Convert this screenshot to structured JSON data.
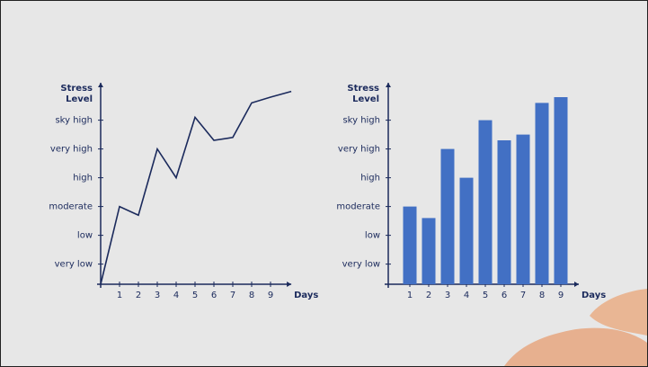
{
  "chart_data": [
    {
      "type": "line",
      "y_label": "Stress Level",
      "x_label": "Days",
      "x": [
        0,
        1,
        2,
        3,
        4,
        5,
        6,
        7,
        8,
        9,
        10.1
      ],
      "values": [
        0.3,
        3.0,
        2.7,
        5.0,
        4.0,
        6.1,
        5.3,
        5.4,
        6.6,
        6.8,
        7.0
      ],
      "color": "#1b2a5c",
      "xlim": [
        0,
        10.1
      ],
      "xticks": [
        1,
        2,
        3,
        4,
        5,
        6,
        7,
        8,
        9
      ],
      "ylim": [
        0.3,
        7.3
      ],
      "yticks": [
        {
          "value": 1,
          "label": "very low"
        },
        {
          "value": 2,
          "label": "low"
        },
        {
          "value": 3,
          "label": "moderate"
        },
        {
          "value": 4,
          "label": "high"
        },
        {
          "value": 5,
          "label": "very high"
        },
        {
          "value": 6,
          "label": "sky high"
        }
      ]
    },
    {
      "type": "bar",
      "y_label": "Stress Level",
      "x_label": "Days",
      "categories": [
        "1",
        "2",
        "3",
        "4",
        "5",
        "6",
        "7",
        "8",
        "9"
      ],
      "values": [
        3.0,
        2.6,
        5.0,
        4.0,
        6.0,
        5.3,
        5.5,
        6.6,
        6.8
      ],
      "color": "#4270c4",
      "ylim": [
        0.3,
        7.3
      ],
      "yticks": [
        {
          "value": 1,
          "label": "very low"
        },
        {
          "value": 2,
          "label": "low"
        },
        {
          "value": 3,
          "label": "moderate"
        },
        {
          "value": 4,
          "label": "high"
        },
        {
          "value": 5,
          "label": "very high"
        },
        {
          "value": 6,
          "label": "sky high"
        }
      ]
    }
  ]
}
